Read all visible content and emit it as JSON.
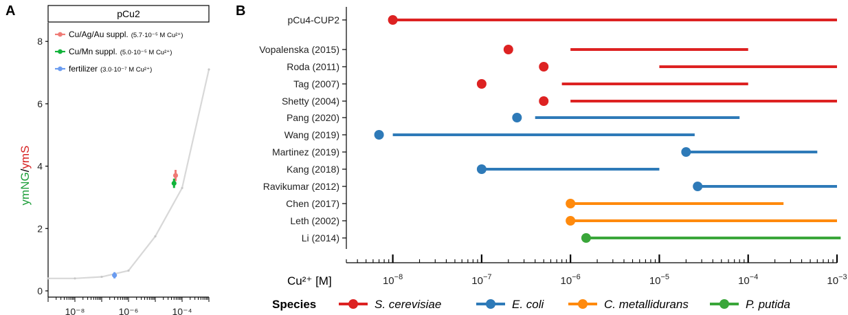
{
  "panels": {
    "a_label": "A",
    "b_label": "B"
  },
  "colors": {
    "s_cerevisiae": "#dd2222",
    "e_coli": "#2e7ab8",
    "c_metallidurans": "#ff8a0d",
    "p_putida": "#3aa63a",
    "curve": "#d8d8d8",
    "cu_ag_au": "#ef7b76",
    "cu_mn": "#12b33a",
    "fertilizer": "#6b9cf0",
    "ylabel_green": "#1d9e3a",
    "ylabel_red": "#d62020"
  },
  "chart_data": [
    {
      "type": "line",
      "panel": "A",
      "title": "pCu2",
      "ylabel_parts": [
        "ymNG",
        "/",
        "ymS"
      ],
      "xscale": "log",
      "xlim": [
        1e-09,
        0.001
      ],
      "ylim": [
        -0.2,
        8.6
      ],
      "yticks": [
        0,
        2,
        4,
        6,
        8
      ],
      "ytick_labels": [
        "0",
        "2",
        "4",
        "6",
        "8"
      ],
      "xtick_labels": [
        "10⁻⁸",
        "10⁻⁶",
        "10⁻⁴"
      ],
      "xticks": [
        1e-08,
        1e-06,
        0.0001
      ],
      "curve": {
        "x": [
          1e-09,
          1e-08,
          1e-07,
          1e-06,
          1e-05,
          0.0001,
          0.001
        ],
        "y": [
          0.4,
          0.4,
          0.45,
          0.65,
          1.75,
          3.3,
          7.1
        ]
      },
      "points": [
        {
          "name": "Cu/Ag/Au suppl.",
          "note": "(5.7·10⁻⁵ M Cu²⁺)",
          "x": 5.7e-05,
          "y": 3.7,
          "err": 0.18,
          "color_key": "cu_ag_au"
        },
        {
          "name": "Cu/Mn suppl.",
          "note": "(5.0·10⁻⁵ M Cu²⁺)",
          "x": 5e-05,
          "y": 3.45,
          "err": 0.15,
          "color_key": "cu_mn"
        },
        {
          "name": "fertilizer",
          "note": "(3.0·10⁻⁷ M Cu²⁺)",
          "x": 3e-07,
          "y": 0.5,
          "err": 0.1,
          "color_key": "fertilizer"
        }
      ],
      "legend_position": "top-left"
    },
    {
      "type": "scatter",
      "panel": "B",
      "xlabel": "Cu²⁺ [M]",
      "xscale": "log",
      "xlim": [
        3e-09,
        0.001
      ],
      "xticks": [
        1e-08,
        1e-07,
        1e-06,
        1e-05,
        0.0001,
        0.001
      ],
      "xtick_labels": [
        {
          "base": "10",
          "exp": "−8"
        },
        {
          "base": "10",
          "exp": "−7"
        },
        {
          "base": "10",
          "exp": "−6"
        },
        {
          "base": "10",
          "exp": "−5"
        },
        {
          "base": "10",
          "exp": "−4"
        },
        {
          "base": "10",
          "exp": "−3"
        }
      ],
      "rows": [
        {
          "label": "pCu4-CUP2",
          "species": "s_cerevisiae",
          "point": 1e-08,
          "range": [
            1e-08,
            0.001
          ]
        },
        {
          "label": "Vopalenska (2015)",
          "species": "s_cerevisiae",
          "point": 2e-07,
          "range": [
            1e-06,
            0.0001
          ]
        },
        {
          "label": "Roda (2011)",
          "species": "s_cerevisiae",
          "point": 5e-07,
          "range": [
            1e-05,
            0.001
          ]
        },
        {
          "label": "Tag (2007)",
          "species": "s_cerevisiae",
          "point": 1e-07,
          "range": [
            8e-07,
            0.0001
          ]
        },
        {
          "label": "Shetty (2004)",
          "species": "s_cerevisiae",
          "point": 5e-07,
          "range": [
            1e-06,
            0.001
          ]
        },
        {
          "label": "Pang (2020)",
          "species": "e_coli",
          "point": 2.5e-07,
          "range": [
            4e-07,
            8e-05
          ]
        },
        {
          "label": "Wang (2019)",
          "species": "e_coli",
          "point": 7e-09,
          "range": [
            1e-08,
            2.5e-05
          ]
        },
        {
          "label": "Martinez (2019)",
          "species": "e_coli",
          "point": 2e-05,
          "range": [
            2e-05,
            0.0006
          ]
        },
        {
          "label": "Kang (2018)",
          "species": "e_coli",
          "point": 1e-07,
          "range": [
            1e-07,
            1e-05
          ]
        },
        {
          "label": "Ravikumar (2012)",
          "species": "e_coli",
          "point": 2.7e-05,
          "range": [
            2.7e-05,
            0.001
          ]
        },
        {
          "label": "Chen (2017)",
          "species": "c_metallidurans",
          "point": 1e-06,
          "range": [
            1e-06,
            0.00025
          ]
        },
        {
          "label": "Leth (2002)",
          "species": "c_metallidurans",
          "point": 1e-06,
          "range": [
            1e-06,
            0.001
          ]
        },
        {
          "label": "Li (2014)",
          "species": "p_putida",
          "point": 1.5e-06,
          "range": [
            1.5e-06,
            0.0011
          ]
        }
      ],
      "legend": {
        "title": "Species",
        "entries": [
          {
            "key": "s_cerevisiae",
            "label": "S. cerevisiae"
          },
          {
            "key": "e_coli",
            "label": "E. coli"
          },
          {
            "key": "c_metallidurans",
            "label": "C. metallidurans"
          },
          {
            "key": "p_putida",
            "label": "P. putida"
          }
        ],
        "position": "bottom"
      }
    }
  ]
}
